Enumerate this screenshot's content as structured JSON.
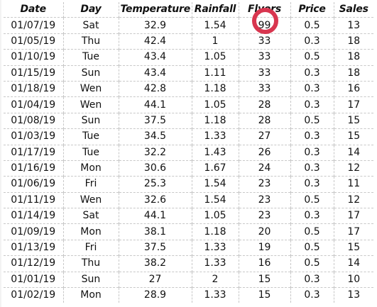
{
  "table": {
    "headers": [
      "Date",
      "Day",
      "Temperature",
      "Rainfall",
      "Flyers",
      "Price",
      "Sales"
    ],
    "rows": [
      [
        "01/07/19",
        "Sat",
        "32.9",
        "1.54",
        "99",
        "0.5",
        "13"
      ],
      [
        "01/05/19",
        "Thu",
        "42.4",
        "1",
        "33",
        "0.3",
        "18"
      ],
      [
        "01/10/19",
        "Tue",
        "43.4",
        "1.05",
        "33",
        "0.5",
        "18"
      ],
      [
        "01/15/19",
        "Sun",
        "43.4",
        "1.11",
        "33",
        "0.3",
        "18"
      ],
      [
        "01/18/19",
        "Wen",
        "42.8",
        "1.18",
        "33",
        "0.3",
        "16"
      ],
      [
        "01/04/19",
        "Wen",
        "44.1",
        "1.05",
        "28",
        "0.3",
        "17"
      ],
      [
        "01/08/19",
        "Sun",
        "37.5",
        "1.18",
        "28",
        "0.5",
        "15"
      ],
      [
        "01/03/19",
        "Tue",
        "34.5",
        "1.33",
        "27",
        "0.3",
        "15"
      ],
      [
        "01/17/19",
        "Tue",
        "32.2",
        "1.43",
        "26",
        "0.3",
        "14"
      ],
      [
        "01/16/19",
        "Mon",
        "30.6",
        "1.67",
        "24",
        "0.3",
        "12"
      ],
      [
        "01/06/19",
        "Fri",
        "25.3",
        "1.54",
        "23",
        "0.3",
        "11"
      ],
      [
        "01/11/19",
        "Wen",
        "32.6",
        "1.54",
        "23",
        "0.5",
        "12"
      ],
      [
        "01/14/19",
        "Sat",
        "44.1",
        "1.05",
        "23",
        "0.3",
        "17"
      ],
      [
        "01/09/19",
        "Mon",
        "38.1",
        "1.18",
        "20",
        "0.5",
        "17"
      ],
      [
        "01/13/19",
        "Fri",
        "37.5",
        "1.33",
        "19",
        "0.5",
        "15"
      ],
      [
        "01/12/19",
        "Thu",
        "38.2",
        "1.33",
        "16",
        "0.5",
        "14"
      ],
      [
        "01/01/19",
        "Sun",
        "27",
        "2",
        "15",
        "0.3",
        "10"
      ],
      [
        "01/02/19",
        "Mon",
        "28.9",
        "1.33",
        "15",
        "0.3",
        "13"
      ]
    ]
  },
  "annotation": {
    "type": "circle",
    "color": "#d8364f",
    "target_cell": "Flyers row 1"
  }
}
